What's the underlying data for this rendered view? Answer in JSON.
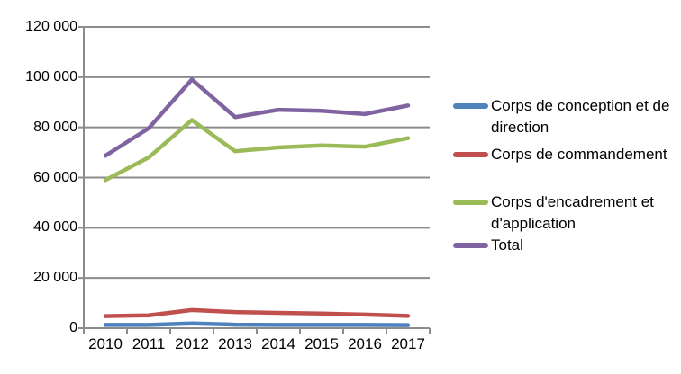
{
  "chart_data": {
    "type": "line",
    "title": "",
    "xlabel": "",
    "ylabel": "",
    "categories": [
      "2010",
      "2011",
      "2012",
      "2013",
      "2014",
      "2015",
      "2016",
      "2017"
    ],
    "series": [
      {
        "name": "Corps de conception et de direction",
        "color": "#4F81BD",
        "values": [
          1300,
          1300,
          1900,
          1400,
          1300,
          1300,
          1300,
          1200
        ]
      },
      {
        "name": "Corps de commandement",
        "color": "#C0504D",
        "values": [
          4800,
          5100,
          7200,
          6400,
          6100,
          5800,
          5400,
          4900
        ]
      },
      {
        "name": "Corps d'encadrement et d'application",
        "color": "#9BBB59",
        "values": [
          59000,
          68000,
          82900,
          70500,
          72000,
          72800,
          72300,
          75700
        ]
      },
      {
        "name": "Total",
        "color": "#8064A2",
        "values": [
          68700,
          79600,
          99100,
          84100,
          87000,
          86600,
          85300,
          88700
        ]
      }
    ],
    "ylim": [
      0,
      120000
    ],
    "y_tick_step": 20000,
    "y_tick_labels": [
      "0",
      "20 000",
      "40 000",
      "60 000",
      "80 000",
      "100 000",
      "120 000"
    ],
    "grid": "horizontal-major",
    "legend_position": "right",
    "axis_color": "#8C8C8C",
    "text_color": "#000000",
    "background_color": "#FFFFFF"
  }
}
